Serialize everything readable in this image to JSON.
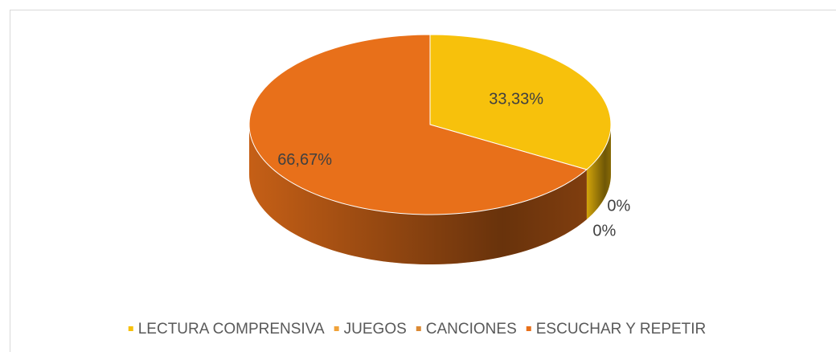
{
  "chart_data": {
    "type": "pie",
    "categories": [
      "LECTURA COMPRENSIVA",
      "JUEGOS",
      "CANCIONES",
      "ESCUCHAR Y REPETIR"
    ],
    "values": [
      33.33,
      0,
      0,
      66.67
    ],
    "value_labels": [
      "33,33%",
      "0%",
      "0%",
      "66,67%"
    ],
    "colors": [
      "#F7C10C",
      "#F0A23A",
      "#DB8A35",
      "#E8701A"
    ],
    "legend": "bottom"
  }
}
